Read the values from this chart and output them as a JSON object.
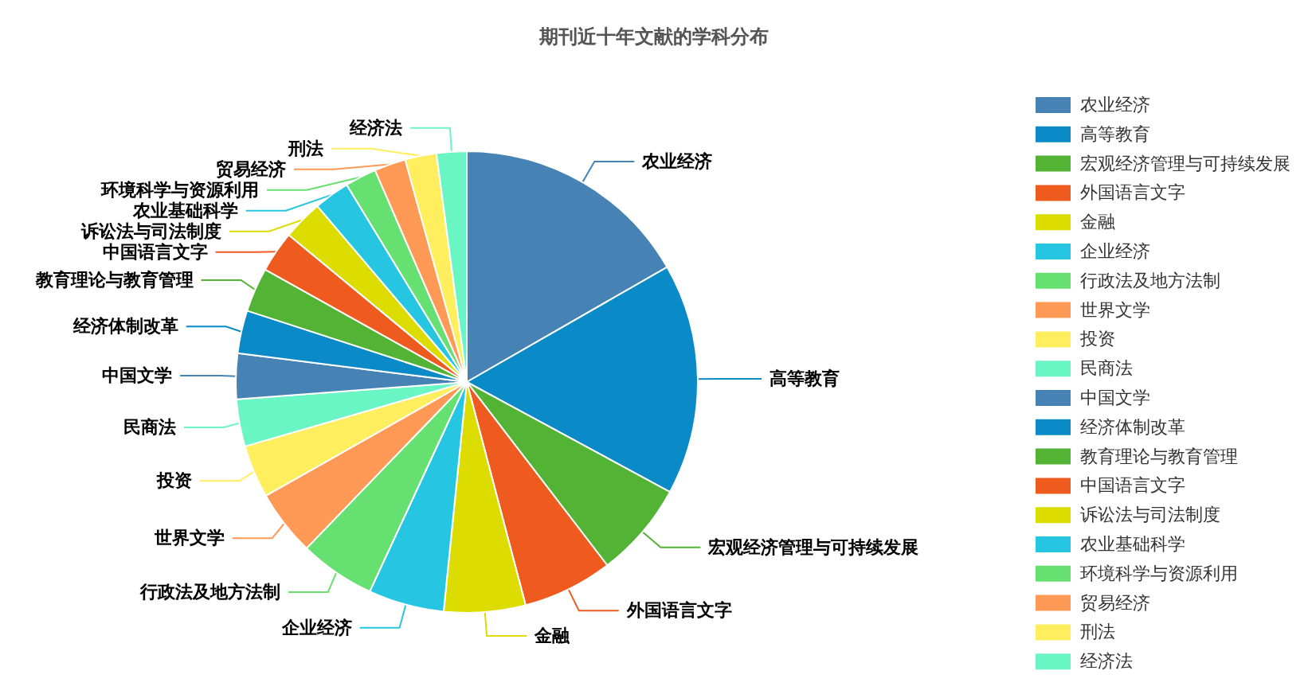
{
  "chart_data": {
    "type": "pie",
    "title": "期刊近十年文献的学科分布",
    "categories": [
      "农业经济",
      "高等教育",
      "宏观经济管理与可持续发展",
      "外国语言文字",
      "金融",
      "企业经济",
      "行政法及地方法制",
      "世界文学",
      "投资",
      "民商法",
      "中国文学",
      "经济体制改革",
      "教育理论与教育管理",
      "中国语言文字",
      "诉讼法与司法制度",
      "农业基础科学",
      "环境科学与资源利用",
      "贸易经济",
      "刑法",
      "经济法"
    ],
    "values": [
      16.7,
      16.2,
      6.7,
      6.3,
      5.7,
      5.3,
      5.3,
      4.6,
      3.7,
      3.3,
      3.2,
      3.0,
      3.1,
      2.9,
      2.8,
      2.5,
      2.2,
      2.2,
      2.2,
      2.1
    ],
    "colors": [
      "#4682b4",
      "#0a8ac6",
      "#52b335",
      "#ef5a1f",
      "#dcdc00",
      "#26c6e2",
      "#66e070",
      "#ff9955",
      "#ffee5e",
      "#6af5c5",
      "#4682b4",
      "#0a8ac6",
      "#52b335",
      "#ef5a1f",
      "#dcdc00",
      "#26c6e2",
      "#66e070",
      "#ff9955",
      "#ffee5e",
      "#6af5c5"
    ],
    "legend": "right"
  }
}
